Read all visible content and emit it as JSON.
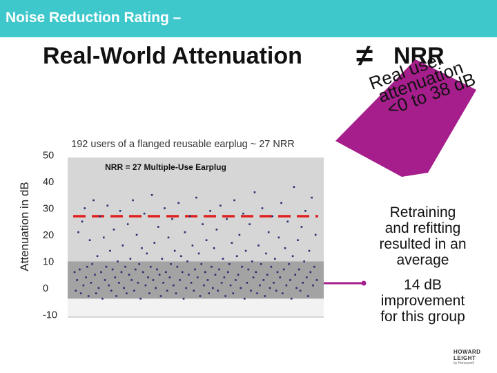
{
  "header": {
    "title": "Noise Reduction Rating –"
  },
  "main_title": {
    "left": "Real-World Attenuation",
    "symbol": "≠",
    "right": "NRR"
  },
  "callout": {
    "lines": [
      "Real user",
      "attenuation",
      "<0 to 38 dB"
    ],
    "color": "#a61e8c"
  },
  "right_text": {
    "para1": [
      "Retraining",
      "and refitting",
      "resulted in an",
      "average"
    ],
    "para2": [
      "14 dB",
      "improvement",
      "for this group"
    ]
  },
  "logo": {
    "line1": "HOWARD",
    "line2": "LEIGHT",
    "line3": "by Honeywell"
  },
  "colors": {
    "header": "#3fc8cc",
    "nrr_line": "#e0201f",
    "points": "#2a2d6e",
    "plot_bg": "#d6d6d6",
    "band": "#a3a3a3",
    "connector": "#a61e8c"
  },
  "chart_data": {
    "type": "scatter",
    "title": "192 users of a flanged reusable earplug ~ 27 NRR",
    "ylabel": "Attenuation in dB",
    "ylim": [
      -10,
      50
    ],
    "yticks": [
      50,
      40,
      30,
      20,
      10,
      0,
      -10
    ],
    "band": [
      -4,
      10
    ],
    "reference_line": {
      "value": 27,
      "label": "NRR = 27 Multiple-Use Earplug",
      "style": "dashed"
    },
    "points": [
      [
        1,
        6
      ],
      [
        2,
        -1
      ],
      [
        3,
        3
      ],
      [
        4,
        21
      ],
      [
        5,
        7
      ],
      [
        6,
        -2
      ],
      [
        7,
        25
      ],
      [
        8,
        1
      ],
      [
        9,
        30
      ],
      [
        10,
        4
      ],
      [
        11,
        8
      ],
      [
        12,
        -3
      ],
      [
        13,
        18
      ],
      [
        14,
        2
      ],
      [
        15,
        9
      ],
      [
        16,
        33
      ],
      [
        17,
        5
      ],
      [
        18,
        -2
      ],
      [
        19,
        12
      ],
      [
        20,
        0
      ],
      [
        21,
        27
      ],
      [
        22,
        6
      ],
      [
        23,
        -4
      ],
      [
        24,
        19
      ],
      [
        25,
        3
      ],
      [
        26,
        8
      ],
      [
        27,
        31
      ],
      [
        28,
        1
      ],
      [
        29,
        14
      ],
      [
        30,
        -1
      ],
      [
        31,
        7
      ],
      [
        32,
        22
      ],
      [
        33,
        4
      ],
      [
        34,
        -3
      ],
      [
        35,
        10
      ],
      [
        36,
        2
      ],
      [
        37,
        29
      ],
      [
        38,
        6
      ],
      [
        39,
        16
      ],
      [
        40,
        0
      ],
      [
        41,
        8
      ],
      [
        42,
        -2
      ],
      [
        43,
        24
      ],
      [
        44,
        5
      ],
      [
        45,
        11
      ],
      [
        46,
        3
      ],
      [
        47,
        33
      ],
      [
        48,
        -1
      ],
      [
        49,
        7
      ],
      [
        50,
        20
      ],
      [
        51,
        2
      ],
      [
        52,
        9
      ],
      [
        53,
        -4
      ],
      [
        54,
        15
      ],
      [
        55,
        6
      ],
      [
        56,
        28
      ],
      [
        57,
        1
      ],
      [
        58,
        13
      ],
      [
        59,
        4
      ],
      [
        60,
        -2
      ],
      [
        61,
        8
      ],
      [
        62,
        35
      ],
      [
        63,
        3
      ],
      [
        64,
        17
      ],
      [
        65,
        0
      ],
      [
        66,
        7
      ],
      [
        67,
        23
      ],
      [
        68,
        5
      ],
      [
        69,
        -3
      ],
      [
        70,
        11
      ],
      [
        71,
        2
      ],
      [
        72,
        30
      ],
      [
        73,
        6
      ],
      [
        74,
        -1
      ],
      [
        75,
        19
      ],
      [
        76,
        4
      ],
      [
        77,
        9
      ],
      [
        78,
        26
      ],
      [
        79,
        1
      ],
      [
        80,
        14
      ],
      [
        81,
        -2
      ],
      [
        82,
        8
      ],
      [
        83,
        32
      ],
      [
        84,
        3
      ],
      [
        85,
        12
      ],
      [
        86,
        6
      ],
      [
        87,
        -4
      ],
      [
        88,
        21
      ],
      [
        89,
        0
      ],
      [
        90,
        10
      ],
      [
        91,
        5
      ],
      [
        92,
        27
      ],
      [
        93,
        2
      ],
      [
        94,
        16
      ],
      [
        95,
        -1
      ],
      [
        96,
        7
      ],
      [
        97,
        34
      ],
      [
        98,
        4
      ],
      [
        99,
        13
      ],
      [
        100,
        -3
      ],
      [
        101,
        9
      ],
      [
        102,
        24
      ],
      [
        103,
        1
      ],
      [
        104,
        6
      ],
      [
        105,
        18
      ],
      [
        106,
        3
      ],
      [
        107,
        -2
      ],
      [
        108,
        29
      ],
      [
        109,
        8
      ],
      [
        110,
        0
      ],
      [
        111,
        15
      ],
      [
        112,
        5
      ],
      [
        113,
        22
      ],
      [
        114,
        -1
      ],
      [
        115,
        7
      ],
      [
        116,
        31
      ],
      [
        117,
        2
      ],
      [
        118,
        11
      ],
      [
        119,
        4
      ],
      [
        120,
        -3
      ],
      [
        121,
        26
      ],
      [
        122,
        6
      ],
      [
        123,
        9
      ],
      [
        124,
        1
      ],
      [
        125,
        17
      ],
      [
        126,
        -2
      ],
      [
        127,
        33
      ],
      [
        128,
        3
      ],
      [
        129,
        12
      ],
      [
        130,
        5
      ],
      [
        131,
        20
      ],
      [
        132,
        0
      ],
      [
        133,
        8
      ],
      [
        134,
        28
      ],
      [
        135,
        -4
      ],
      [
        136,
        14
      ],
      [
        137,
        2
      ],
      [
        138,
        7
      ],
      [
        139,
        24
      ],
      [
        140,
        -1
      ],
      [
        141,
        10
      ],
      [
        142,
        4
      ],
      [
        143,
        36
      ],
      [
        144,
        6
      ],
      [
        145,
        -2
      ],
      [
        146,
        16
      ],
      [
        147,
        1
      ],
      [
        148,
        9
      ],
      [
        149,
        30
      ],
      [
        150,
        3
      ],
      [
        151,
        -3
      ],
      [
        152,
        13
      ],
      [
        153,
        5
      ],
      [
        154,
        21
      ],
      [
        155,
        0
      ],
      [
        156,
        8
      ],
      [
        157,
        27
      ],
      [
        158,
        2
      ],
      [
        159,
        11
      ],
      [
        160,
        -1
      ],
      [
        161,
        6
      ],
      [
        162,
        19
      ],
      [
        163,
        4
      ],
      [
        164,
        32
      ],
      [
        165,
        -2
      ],
      [
        166,
        7
      ],
      [
        167,
        15
      ],
      [
        168,
        1
      ],
      [
        169,
        25
      ],
      [
        170,
        9
      ],
      [
        171,
        3
      ],
      [
        172,
        -4
      ],
      [
        173,
        12
      ],
      [
        174,
        38
      ],
      [
        175,
        5
      ],
      [
        176,
        0
      ],
      [
        177,
        18
      ],
      [
        178,
        7
      ],
      [
        179,
        -1
      ],
      [
        180,
        23
      ],
      [
        181,
        2
      ],
      [
        182,
        10
      ],
      [
        183,
        29
      ],
      [
        184,
        4
      ],
      [
        185,
        -3
      ],
      [
        186,
        14
      ],
      [
        187,
        6
      ],
      [
        188,
        34
      ],
      [
        189,
        1
      ],
      [
        190,
        8
      ],
      [
        191,
        20
      ],
      [
        192,
        3
      ]
    ]
  }
}
